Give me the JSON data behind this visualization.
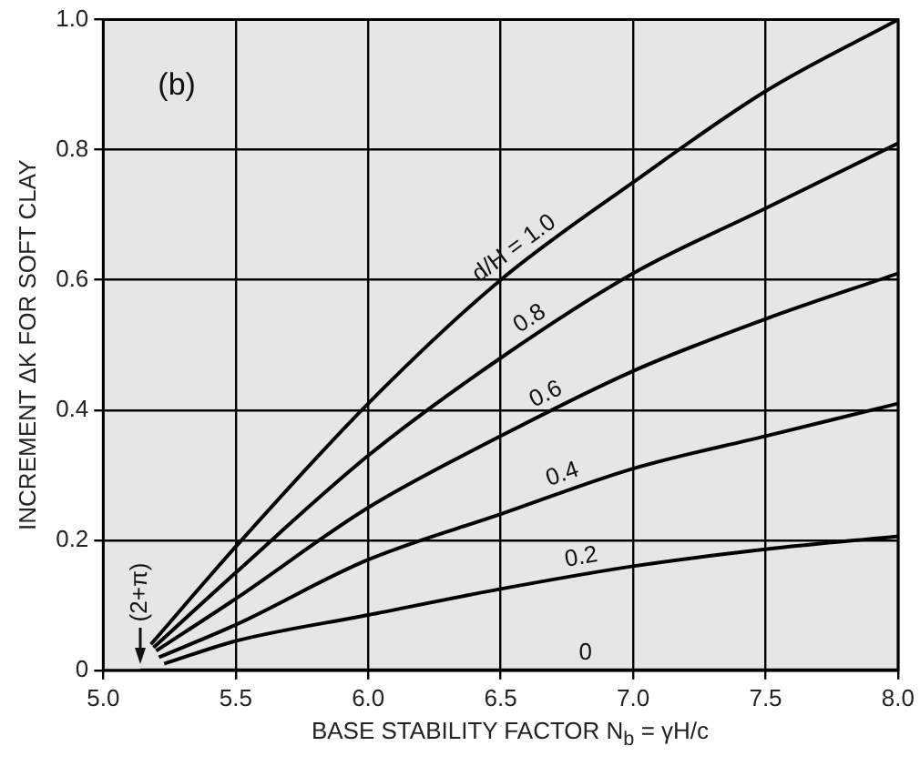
{
  "chart_data": {
    "type": "line",
    "xlabel": "BASE STABILITY FACTOR N$_{b}$ = γH/c",
    "ylabel": "INCREMENT ΔK FOR SOFT CLAY",
    "xlim": [
      5.0,
      8.0
    ],
    "xticks": [
      {
        "value": 5,
        "label": "5.0"
      },
      5.5,
      {
        "value": 6,
        "label": "6.0"
      },
      6.5,
      {
        "value": 7,
        "label": "7.0"
      },
      7.5,
      {
        "value": 8,
        "label": "8.0"
      }
    ],
    "ylim": [
      0,
      1.0
    ],
    "yticks": [
      0,
      0.2,
      0.4,
      0.6,
      0.8,
      {
        "value": 1,
        "label": "1.0"
      }
    ],
    "grid": true,
    "legend": false,
    "marker": "none",
    "line_style": "solid",
    "series": [
      {
        "name": "d/H = 1.0",
        "color": "#000000",
        "x": [
          5.18,
          5.5,
          6.0,
          6.5,
          7.0,
          7.5,
          8.0
        ],
        "values": [
          0.04,
          0.19,
          0.41,
          0.6,
          0.75,
          0.89,
          1.0
        ]
      },
      {
        "name": "0.8",
        "color": "#000000",
        "x": [
          5.19,
          5.5,
          6.0,
          6.5,
          7.0,
          7.5,
          8.0
        ],
        "values": [
          0.035,
          0.15,
          0.33,
          0.48,
          0.61,
          0.71,
          0.81
        ]
      },
      {
        "name": "0.6",
        "color": "#000000",
        "x": [
          5.2,
          5.5,
          6.0,
          6.5,
          7.0,
          7.5,
          8.0
        ],
        "values": [
          0.03,
          0.11,
          0.25,
          0.36,
          0.46,
          0.54,
          0.61
        ]
      },
      {
        "name": "0.4",
        "color": "#000000",
        "x": [
          5.21,
          5.5,
          6.0,
          6.5,
          7.0,
          7.5,
          8.0
        ],
        "values": [
          0.02,
          0.07,
          0.17,
          0.24,
          0.31,
          0.36,
          0.41
        ]
      },
      {
        "name": "0.2",
        "color": "#000000",
        "x": [
          5.23,
          5.5,
          6.0,
          6.5,
          7.0,
          7.5,
          8.0
        ],
        "values": [
          0.01,
          0.045,
          0.085,
          0.125,
          0.16,
          0.186,
          0.206
        ]
      },
      {
        "name": "0",
        "color": "#000000",
        "x": [
          5.14,
          8.0
        ],
        "values": [
          0,
          0
        ]
      }
    ],
    "annotations": [
      "(b)",
      "(2+π)"
    ]
  }
}
